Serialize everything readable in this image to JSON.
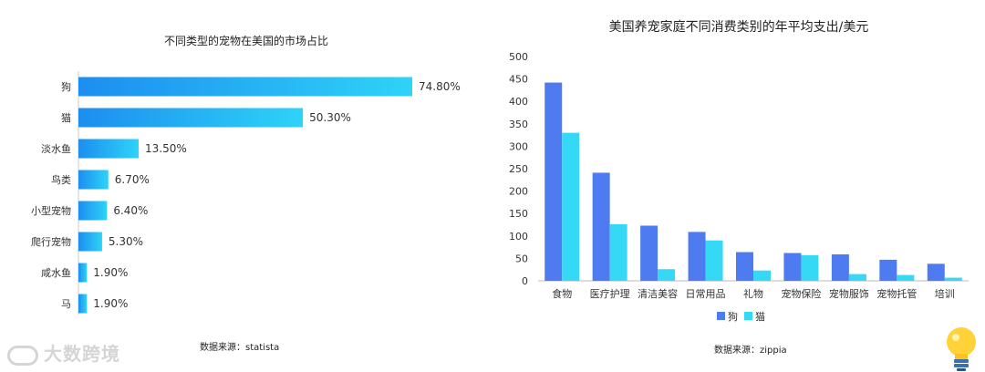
{
  "chart_data": [
    {
      "type": "bar",
      "orientation": "horizontal",
      "title": "不同类型的宠物在美国的市场占比",
      "categories": [
        "狗",
        "猫",
        "淡水鱼",
        "鸟类",
        "小型宠物",
        "爬行宠物",
        "咸水鱼",
        "马"
      ],
      "values": [
        74.8,
        50.3,
        13.5,
        6.7,
        6.4,
        5.3,
        1.9,
        1.9
      ],
      "value_labels": [
        "74.80%",
        "50.30%",
        "13.50%",
        "6.70%",
        "6.40%",
        "5.30%",
        "1.90%",
        "1.90%"
      ],
      "xlim": [
        0,
        80
      ],
      "bar_color": "#1aa0f0",
      "source": "数据来源：statista"
    },
    {
      "type": "bar",
      "title": "美国养宠家庭不同消费类别的年平均支出/美元",
      "categories": [
        "食物",
        "医疗护理",
        "清洁美容",
        "日常用品",
        "礼物",
        "宠物保险",
        "宠物服饰",
        "宠物托管",
        "培训"
      ],
      "series": [
        {
          "name": "狗",
          "color": "#4e7cf0",
          "values": [
            442,
            241,
            123,
            109,
            64,
            62,
            59,
            47,
            38
          ]
        },
        {
          "name": "猫",
          "color": "#36d9f5",
          "values": [
            330,
            126,
            26,
            90,
            23,
            57,
            15,
            13,
            7
          ]
        }
      ],
      "ylim": [
        0,
        500
      ],
      "yticks": [
        0,
        50,
        100,
        150,
        200,
        250,
        300,
        350,
        400,
        450,
        500
      ],
      "grid": false,
      "legend": "bottom",
      "source": "数据来源：zippia"
    }
  ],
  "brand": {
    "logo_text": "大数跨境"
  }
}
